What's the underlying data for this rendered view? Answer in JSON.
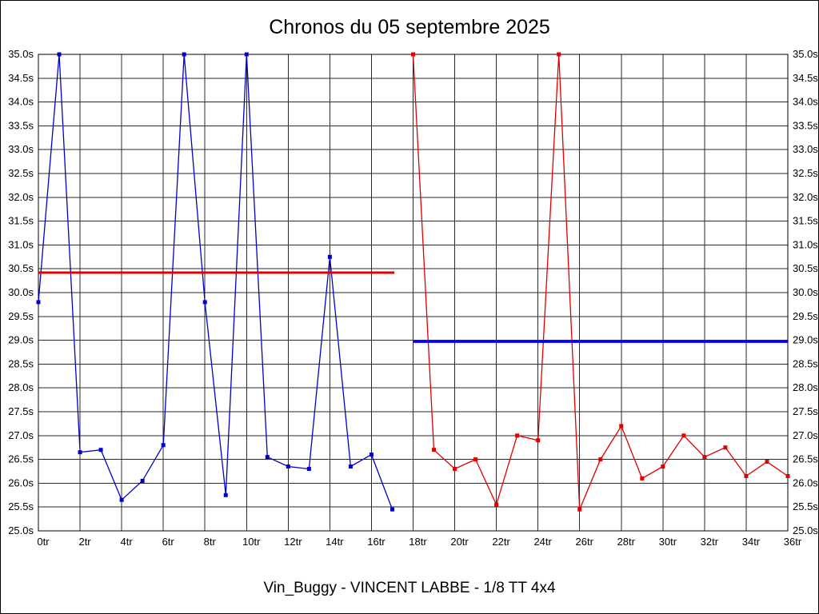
{
  "title": "Chronos du 05 septembre 2025",
  "subtitle": "Vin_Buggy - VINCENT LABBE - 1/8 TT 4x4",
  "chart_data": {
    "type": "line",
    "title": "Chronos du 05 septembre 2025",
    "subtitle": "Vin_Buggy - VINCENT LABBE - 1/8 TT 4x4",
    "xlabel": "",
    "ylabel": "",
    "x_unit": "tr",
    "y_unit": "s",
    "xlim": [
      0,
      36
    ],
    "ylim": [
      25.0,
      35.0
    ],
    "x_tick_step": 2,
    "y_tick_step": 0.5,
    "grid": true,
    "grid_color": "#2a2a2a",
    "legend_position": "none",
    "series": [
      {
        "name": "blue-series",
        "color": "#0000cd",
        "x": [
          0,
          1,
          2,
          3,
          4,
          5,
          6,
          7,
          8,
          9,
          10,
          11,
          12,
          13,
          14,
          15,
          16,
          17
        ],
        "values": [
          29.8,
          35.0,
          26.65,
          26.7,
          25.65,
          26.05,
          26.8,
          35.0,
          29.8,
          25.75,
          35.0,
          26.55,
          26.35,
          26.3,
          30.75,
          26.35,
          26.6,
          25.45
        ]
      },
      {
        "name": "red-series",
        "color": "#e00000",
        "x": [
          18,
          19,
          20,
          21,
          22,
          23,
          24,
          25,
          26,
          27,
          28,
          29,
          30,
          31,
          32,
          33,
          34,
          35,
          36
        ],
        "values": [
          35.0,
          26.7,
          26.3,
          26.5,
          25.55,
          27.0,
          26.9,
          35.0,
          25.45,
          26.5,
          27.2,
          26.1,
          26.35,
          27.0,
          26.55,
          26.75,
          26.15,
          26.45,
          26.15
        ]
      }
    ],
    "reference_lines": [
      {
        "name": "red-average-line",
        "color": "#e00000",
        "y": 30.42,
        "x_start": 0,
        "x_end": 17.1
      },
      {
        "name": "blue-average-line",
        "color": "#0000ff",
        "y": 28.97,
        "x_start": 18,
        "x_end": 36
      }
    ]
  }
}
